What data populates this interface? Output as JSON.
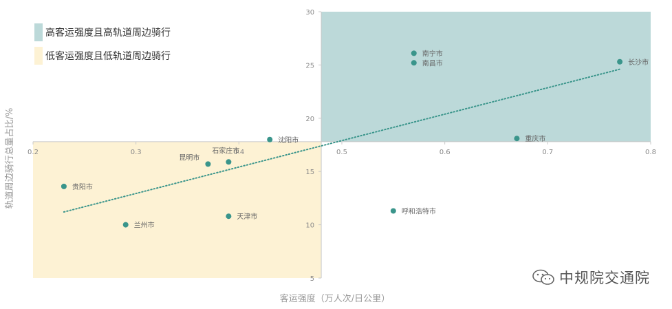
{
  "chart_data": {
    "type": "scatter",
    "xlabel": "客运强度（万人次/日公里）",
    "ylabel": "轨道周边骑行总量占比/%",
    "xlim": [
      0.2,
      0.8
    ],
    "ylim": [
      5,
      30
    ],
    "x_ticks": [
      "0.2",
      "0.3",
      "0.4",
      "0.5",
      "0.6",
      "0.7",
      "0.8"
    ],
    "y_ticks": [
      "5",
      "10",
      "15",
      "20",
      "25",
      "30"
    ],
    "x_tick_values": [
      0.2,
      0.3,
      0.4,
      0.5,
      0.6,
      0.7,
      0.8
    ],
    "y_tick_values": [
      5,
      10,
      15,
      20,
      25,
      30
    ],
    "axis_cross": {
      "x": 0.48,
      "y": 17.8
    },
    "regions": [
      {
        "label": "高客运强度且高轨道周边骑行",
        "color": "#bcd9d9",
        "x_range": [
          0.48,
          0.8
        ],
        "y_range": [
          17.8,
          30
        ]
      },
      {
        "label": "低客运强度且低轨道周边骑行",
        "color": "#fdf2d4",
        "x_range": [
          0.2,
          0.48
        ],
        "y_range": [
          5,
          17.8
        ]
      }
    ],
    "points": [
      {
        "name": "南宁市",
        "x": 0.57,
        "y": 26.1
      },
      {
        "name": "南昌市",
        "x": 0.57,
        "y": 25.2
      },
      {
        "name": "长沙市",
        "x": 0.77,
        "y": 25.3
      },
      {
        "name": "重庆市",
        "x": 0.67,
        "y": 18.1
      },
      {
        "name": "沈阳市",
        "x": 0.43,
        "y": 18.0
      },
      {
        "name": "石家庄市",
        "x": 0.39,
        "y": 15.9
      },
      {
        "name": "昆明市",
        "x": 0.37,
        "y": 15.7
      },
      {
        "name": "贵阳市",
        "x": 0.23,
        "y": 13.6
      },
      {
        "name": "呼和浩特市",
        "x": 0.55,
        "y": 11.3
      },
      {
        "name": "天津市",
        "x": 0.39,
        "y": 10.8
      },
      {
        "name": "兰州市",
        "x": 0.29,
        "y": 10.0
      }
    ],
    "trendline": {
      "style": "dotted",
      "from": [
        0.23,
        11.2
      ],
      "to": [
        0.77,
        24.6
      ]
    },
    "point_color": "#3a958b",
    "grid": false,
    "legend_position": "top-left"
  },
  "watermark": {
    "text": "中规院交通院",
    "icon": "wechat-icon"
  }
}
